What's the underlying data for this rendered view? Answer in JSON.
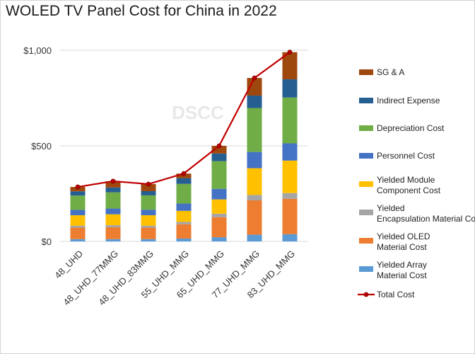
{
  "chart_data": {
    "type": "bar",
    "stacked": true,
    "title": "WOLED TV Panel Cost for China in 2022",
    "watermark": "DSCC",
    "categories": [
      "48_UHD",
      "48_UHD_77MMG",
      "48_UHD_83MMG",
      "55_UHD_MMG",
      "65_UHD_MMG",
      "77_UHD_MMG",
      "83_UHD_MMG"
    ],
    "y_ticks": [
      "$1,000",
      "$500",
      "$0"
    ],
    "ylim": [
      0,
      1000
    ],
    "grid": true,
    "legend_position": "right",
    "series": [
      {
        "name": "Yielded Array Material Cost",
        "color": "#5b9bd5",
        "values": [
          12,
          12,
          12,
          15,
          22,
          35,
          38
        ]
      },
      {
        "name": "Yielded OLED Material Cost",
        "color": "#ed7d31",
        "values": [
          60,
          62,
          60,
          75,
          105,
          180,
          185
        ]
      },
      {
        "name": "Yielded Encapsulation Material Cost",
        "color": "#a5a5a5",
        "values": [
          10,
          11,
          10,
          12,
          18,
          28,
          30
        ]
      },
      {
        "name": "Yielded Module Component Cost",
        "color": "#ffc000",
        "values": [
          55,
          57,
          55,
          58,
          75,
          140,
          170
        ]
      },
      {
        "name": "Personnel Cost",
        "color": "#4472c4",
        "values": [
          28,
          30,
          29,
          38,
          55,
          85,
          90
        ]
      },
      {
        "name": "Depreciation Cost",
        "color": "#70ad47",
        "values": [
          75,
          85,
          75,
          103,
          145,
          230,
          240
        ]
      },
      {
        "name": "Indirect Expense",
        "color": "#255e91",
        "values": [
          22,
          25,
          22,
          30,
          40,
          65,
          95
        ]
      },
      {
        "name": "SG & A",
        "color": "#9e480e",
        "values": [
          23,
          33,
          37,
          24,
          40,
          92,
          142
        ]
      }
    ],
    "total": {
      "name": "Total Cost",
      "color": "#c00000",
      "values": [
        285,
        315,
        300,
        355,
        500,
        855,
        990
      ]
    }
  }
}
